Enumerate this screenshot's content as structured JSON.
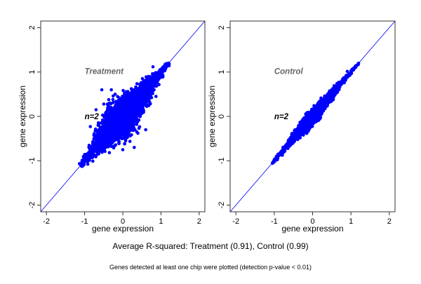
{
  "chart_data": [
    {
      "type": "scatter",
      "title": "Treatment",
      "annotation": "n=2",
      "xlabel": "gene expression",
      "ylabel": "gene expression",
      "xlim": [
        -2.15,
        2.15
      ],
      "ylim": [
        -2.15,
        2.15
      ],
      "xticks": [
        "-2",
        "-1",
        "0",
        "1",
        "2"
      ],
      "yticks": [
        "-2",
        "-1",
        "0",
        "1",
        "2"
      ],
      "reference_line": "y = x",
      "point_color": "#0000ff",
      "cloud": {
        "diag_min": -1.1,
        "diag_max": 1.2,
        "diag_sd": 0.38,
        "perp_sd": 0.13,
        "n": 3500
      },
      "outliers": [
        [
          -0.55,
          0.6
        ],
        [
          -0.3,
          0.6
        ],
        [
          0.6,
          -0.3
        ],
        [
          -0.85,
          -0.23
        ],
        [
          -0.7,
          0.15
        ],
        [
          0.3,
          -0.7
        ],
        [
          0.0,
          -0.75
        ],
        [
          -0.2,
          0.5
        ]
      ]
    },
    {
      "type": "scatter",
      "title": "Control",
      "annotation": "n=2",
      "xlabel": "gene expression",
      "ylabel": "gene expression",
      "xlim": [
        -2.15,
        2.15
      ],
      "ylim": [
        -2.15,
        2.15
      ],
      "xticks": [
        "-2",
        "-1",
        "0",
        "1",
        "2"
      ],
      "yticks": [
        "-2",
        "-1",
        "0",
        "1",
        "2"
      ],
      "reference_line": "y = x",
      "point_color": "#0000ff",
      "cloud": {
        "diag_min": -1.05,
        "diag_max": 1.2,
        "diag_sd": 0.35,
        "perp_sd": 0.045,
        "n": 3000
      },
      "outliers": []
    }
  ],
  "footer": {
    "summary": "Average R-squared: Treatment (0.91), Control (0.99)",
    "note": "Genes detected at least one chip were plotted (detection p-value < 0.01)"
  }
}
